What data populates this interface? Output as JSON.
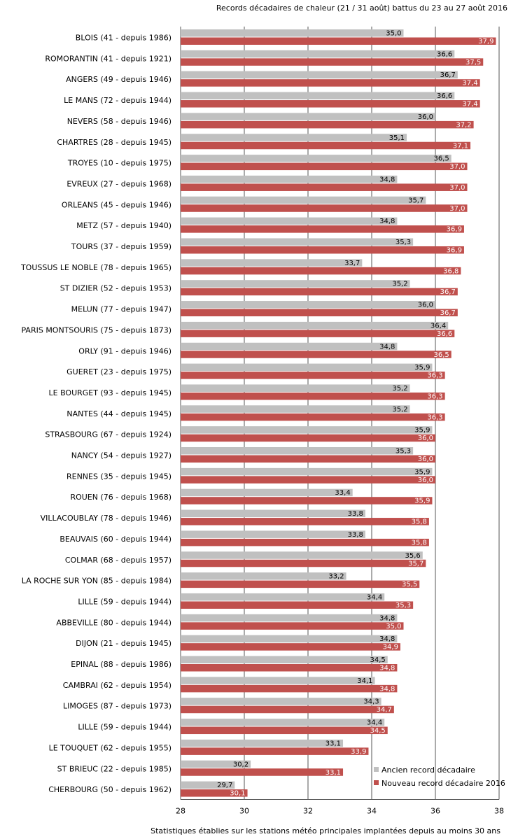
{
  "chart_data": {
    "type": "bar",
    "orientation": "horizontal",
    "title": "Records décadaires de chaleur (21 / 31 août) battus du 23 au 27 août 2016",
    "footnote": "Statistiques établies sur les stations météo principales implantées depuis au moins 30 ans",
    "xlim": [
      28,
      38
    ],
    "xticks": [
      "28",
      "30",
      "32",
      "34",
      "36",
      "38"
    ],
    "grid": "vertical",
    "legend_position": "bottom-right",
    "categories": [
      "BLOIS (41 - depuis 1986)",
      "ROMORANTIN (41 - depuis 1921)",
      "ANGERS (49 - depuis 1946)",
      "LE MANS (72 - depuis 1944)",
      "NEVERS (58 - depuis 1946)",
      "CHARTRES (28 - depuis 1945)",
      "TROYES (10 - depuis 1975)",
      "EVREUX (27 - depuis 1968)",
      "ORLEANS (45 - depuis 1946)",
      "METZ (57 - depuis 1940)",
      "TOURS (37 - depuis 1959)",
      "TOUSSUS LE NOBLE (78 - depuis 1965)",
      "ST DIZIER (52 - depuis 1953)",
      "MELUN (77 - depuis 1947)",
      "PARIS MONTSOURIS (75 - depuis 1873)",
      "ORLY (91 - depuis 1946)",
      "GUERET (23 - depuis 1975)",
      "LE BOURGET (93 - depuis 1945)",
      "NANTES (44 - depuis 1945)",
      "STRASBOURG (67 - depuis 1924)",
      "NANCY (54 - depuis 1927)",
      "RENNES (35 - depuis 1945)",
      "ROUEN (76 - depuis 1968)",
      "VILLACOUBLAY (78 - depuis 1946)",
      "BEAUVAIS (60 - depuis 1944)",
      "COLMAR (68 - depuis 1957)",
      "LA ROCHE SUR YON (85 - depuis 1984)",
      "LILLE (59 - depuis 1944)",
      "ABBEVILLE (80 - depuis 1944)",
      "DIJON (21 - depuis 1945)",
      "EPINAL (88 - depuis 1986)",
      "CAMBRAI (62 - depuis 1954)",
      "LIMOGES (87 - depuis 1973)",
      "LILLE (59 - depuis 1944)",
      "LE TOUQUET (62 - depuis 1955)",
      "ST BRIEUC (22 - depuis 1985)",
      "CHERBOURG (50 - depuis 1962)"
    ],
    "series": [
      {
        "name": "Ancien record décadaire",
        "color": "#c0c0c0",
        "values": [
          35.0,
          36.6,
          36.7,
          36.6,
          36.0,
          35.1,
          36.5,
          34.8,
          35.7,
          34.8,
          35.3,
          33.7,
          35.2,
          36.0,
          36.4,
          34.8,
          35.9,
          35.2,
          35.2,
          35.9,
          35.3,
          35.9,
          33.4,
          33.8,
          33.8,
          35.6,
          33.2,
          34.4,
          34.8,
          34.8,
          34.5,
          34.1,
          34.3,
          34.4,
          33.1,
          30.2,
          29.7
        ],
        "labels": [
          "35,0",
          "36,6",
          "36,7",
          "36,6",
          "36,0",
          "35,1",
          "36,5",
          "34,8",
          "35,7",
          "34,8",
          "35,3",
          "33,7",
          "35,2",
          "36,0",
          "36,4",
          "34,8",
          "35,9",
          "35,2",
          "35,2",
          "35,9",
          "35,3",
          "35,9",
          "33,4",
          "33,8",
          "33,8",
          "35,6",
          "33,2",
          "34,4",
          "34,8",
          "34,8",
          "34,5",
          "34,1",
          "34,3",
          "34,4",
          "33,1",
          "30,2",
          "29,7"
        ]
      },
      {
        "name": "Nouveau record décadaire 2016",
        "color": "#c0504d",
        "values": [
          37.9,
          37.5,
          37.4,
          37.4,
          37.2,
          37.1,
          37.0,
          37.0,
          37.0,
          36.9,
          36.9,
          36.8,
          36.7,
          36.7,
          36.6,
          36.5,
          36.3,
          36.3,
          36.3,
          36.0,
          36.0,
          36.0,
          35.9,
          35.8,
          35.8,
          35.7,
          35.5,
          35.3,
          35.0,
          34.9,
          34.8,
          34.8,
          34.7,
          34.5,
          33.9,
          33.1,
          30.1
        ],
        "labels": [
          "37,9",
          "37,5",
          "37,4",
          "37,4",
          "37,2",
          "37,1",
          "37,0",
          "37,0",
          "37,0",
          "36,9",
          "36,9",
          "36,8",
          "36,7",
          "36,7",
          "36,6",
          "36,5",
          "36,3",
          "36,3",
          "36,3",
          "36,0",
          "36,0",
          "36,0",
          "35,9",
          "35,8",
          "35,8",
          "35,7",
          "35,5",
          "35,3",
          "35,0",
          "34,9",
          "34,8",
          "34,8",
          "34,7",
          "34,5",
          "33,9",
          "33,1",
          "30,1"
        ]
      }
    ]
  }
}
